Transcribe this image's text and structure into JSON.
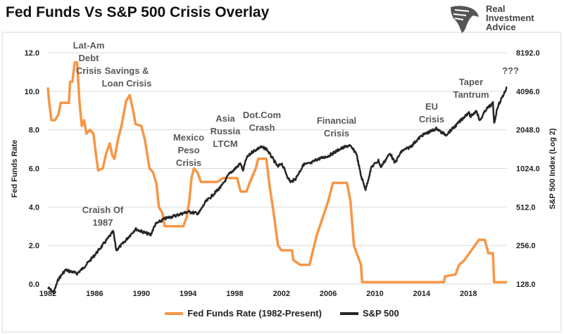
{
  "title": "Fed Funds Vs S&P 500 Crisis Overlay",
  "logo": {
    "lines": [
      "Real",
      "Investment",
      "Advice"
    ]
  },
  "colors": {
    "fed": "#F79646",
    "sp": "#262626",
    "grid": "#D9D9D9",
    "annotation": "#595959"
  },
  "annotations": [
    {
      "lines": [
        "Lat-Am",
        "Debt",
        "Crisis"
      ]
    },
    {
      "lines": [
        "Savings &",
        "Loan Crisis"
      ]
    },
    {
      "lines": [
        "Craish Of",
        "1987"
      ]
    },
    {
      "lines": [
        "Mexico",
        "Peso",
        "Crisis"
      ]
    },
    {
      "lines": [
        "Asia",
        "Russia",
        "LTCM"
      ]
    },
    {
      "lines": [
        "Dot.Com",
        "Crash"
      ]
    },
    {
      "lines": [
        "Financial",
        "Crisis"
      ]
    },
    {
      "lines": [
        "EU",
        "Crisis"
      ]
    },
    {
      "lines": [
        "Taper",
        "Tantrum"
      ]
    },
    {
      "lines": [
        "???"
      ]
    }
  ],
  "legend": {
    "fed": "Fed Funds Rate (1982-Present)",
    "sp": "S&P 500"
  },
  "chart_data": {
    "type": "line",
    "title": "Fed Funds Vs S&P 500 Crisis Overlay",
    "xlabel": "",
    "ylabel": "Fed Funds Rate",
    "y2label": "S&P 500 Index (Log 2)",
    "xlim": [
      1982,
      2021.3
    ],
    "ylim": [
      0,
      12
    ],
    "y2lim": [
      128,
      8192
    ],
    "y2scale": "log2",
    "grid": true,
    "legend_position": "bottom",
    "xticks": [
      "1982",
      "1986",
      "1990",
      "1994",
      "1998",
      "2002",
      "2006",
      "2010",
      "2014",
      "2018"
    ],
    "yticks": [
      "0.0",
      "2.0",
      "4.0",
      "6.0",
      "8.0",
      "10.0",
      "12.0"
    ],
    "y2ticks": [
      "128.0",
      "256.0",
      "512.0",
      "1024.0",
      "2048.0",
      "4096.0",
      "8192.0"
    ],
    "series": [
      {
        "name": "Fed Funds Rate (1982-Present)",
        "axis": "left",
        "points": [
          [
            1982.0,
            10.2
          ],
          [
            1982.1,
            9.5
          ],
          [
            1982.3,
            8.5
          ],
          [
            1982.6,
            8.5
          ],
          [
            1982.9,
            8.8
          ],
          [
            1983.1,
            9.4
          ],
          [
            1983.8,
            9.4
          ],
          [
            1983.9,
            10.5
          ],
          [
            1984.1,
            10.5
          ],
          [
            1984.3,
            11.5
          ],
          [
            1984.5,
            11.5
          ],
          [
            1984.7,
            9.5
          ],
          [
            1984.9,
            8.2
          ],
          [
            1985.1,
            8.5
          ],
          [
            1985.3,
            7.8
          ],
          [
            1985.6,
            8.0
          ],
          [
            1985.9,
            7.8
          ],
          [
            1986.1,
            6.8
          ],
          [
            1986.3,
            5.9
          ],
          [
            1986.7,
            6.0
          ],
          [
            1987.0,
            6.8
          ],
          [
            1987.3,
            7.3
          ],
          [
            1987.5,
            6.7
          ],
          [
            1987.7,
            6.5
          ],
          [
            1988.0,
            7.5
          ],
          [
            1988.3,
            8.2
          ],
          [
            1988.7,
            9.5
          ],
          [
            1989.0,
            9.8
          ],
          [
            1989.3,
            9.0
          ],
          [
            1989.5,
            8.3
          ],
          [
            1990.0,
            8.2
          ],
          [
            1990.3,
            7.5
          ],
          [
            1990.7,
            6.0
          ],
          [
            1991.0,
            5.8
          ],
          [
            1991.3,
            5.2
          ],
          [
            1991.5,
            4.0
          ],
          [
            1991.8,
            3.7
          ],
          [
            1992.0,
            3.0
          ],
          [
            1993.6,
            3.0
          ],
          [
            1993.9,
            3.5
          ],
          [
            1994.1,
            4.3
          ],
          [
            1994.3,
            5.5
          ],
          [
            1994.5,
            6.0
          ],
          [
            1994.8,
            5.8
          ],
          [
            1995.1,
            5.3
          ],
          [
            1996.5,
            5.3
          ],
          [
            1997.0,
            5.5
          ],
          [
            1998.2,
            5.5
          ],
          [
            1998.5,
            4.8
          ],
          [
            1999.0,
            4.8
          ],
          [
            1999.3,
            5.3
          ],
          [
            1999.8,
            6.0
          ],
          [
            2000.0,
            6.5
          ],
          [
            2000.7,
            6.5
          ],
          [
            2001.0,
            5.0
          ],
          [
            2001.3,
            3.8
          ],
          [
            2001.7,
            2.0
          ],
          [
            2002.0,
            1.75
          ],
          [
            2002.9,
            1.75
          ],
          [
            2003.0,
            1.25
          ],
          [
            2003.6,
            1.0
          ],
          [
            2004.4,
            1.0
          ],
          [
            2005.0,
            2.5
          ],
          [
            2006.0,
            4.3
          ],
          [
            2006.4,
            5.25
          ],
          [
            2007.6,
            5.25
          ],
          [
            2007.9,
            4.3
          ],
          [
            2008.2,
            2.0
          ],
          [
            2008.8,
            1.0
          ],
          [
            2008.9,
            0.1
          ],
          [
            2015.9,
            0.1
          ],
          [
            2016.0,
            0.4
          ],
          [
            2016.9,
            0.5
          ],
          [
            2017.2,
            1.0
          ],
          [
            2017.6,
            1.2
          ],
          [
            2018.2,
            1.7
          ],
          [
            2018.9,
            2.3
          ],
          [
            2019.4,
            2.3
          ],
          [
            2019.7,
            1.6
          ],
          [
            2020.1,
            1.6
          ],
          [
            2020.2,
            0.1
          ],
          [
            2021.3,
            0.1
          ]
        ]
      },
      {
        "name": "S&P 500",
        "axis": "right",
        "points": [
          [
            1982.0,
            120
          ],
          [
            1982.5,
            110
          ],
          [
            1982.9,
            140
          ],
          [
            1983.5,
            165
          ],
          [
            1984.5,
            155
          ],
          [
            1985.0,
            170
          ],
          [
            1985.9,
            210
          ],
          [
            1986.5,
            245
          ],
          [
            1987.6,
            330
          ],
          [
            1987.85,
            235
          ],
          [
            1988.5,
            270
          ],
          [
            1989.5,
            345
          ],
          [
            1990.0,
            330
          ],
          [
            1990.8,
            310
          ],
          [
            1991.2,
            375
          ],
          [
            1992.0,
            415
          ],
          [
            1993.0,
            440
          ],
          [
            1994.0,
            470
          ],
          [
            1994.9,
            455
          ],
          [
            1995.5,
            560
          ],
          [
            1996.0,
            620
          ],
          [
            1996.9,
            750
          ],
          [
            1997.5,
            920
          ],
          [
            1998.5,
            1120
          ],
          [
            1998.7,
            980
          ],
          [
            1999.0,
            1230
          ],
          [
            1999.5,
            1380
          ],
          [
            2000.2,
            1500
          ],
          [
            2000.7,
            1460
          ],
          [
            2001.3,
            1200
          ],
          [
            2001.7,
            1050
          ],
          [
            2002.0,
            1130
          ],
          [
            2002.6,
            850
          ],
          [
            2002.8,
            800
          ],
          [
            2003.2,
            850
          ],
          [
            2003.9,
            1100
          ],
          [
            2004.5,
            1120
          ],
          [
            2005.0,
            1200
          ],
          [
            2006.0,
            1280
          ],
          [
            2007.0,
            1450
          ],
          [
            2007.8,
            1550
          ],
          [
            2008.4,
            1350
          ],
          [
            2008.8,
            900
          ],
          [
            2009.2,
            700
          ],
          [
            2009.7,
            1050
          ],
          [
            2010.3,
            1180
          ],
          [
            2010.5,
            1050
          ],
          [
            2011.3,
            1350
          ],
          [
            2011.7,
            1130
          ],
          [
            2012.3,
            1400
          ],
          [
            2013.0,
            1500
          ],
          [
            2014.0,
            1850
          ],
          [
            2015.3,
            2100
          ],
          [
            2015.7,
            1950
          ],
          [
            2016.1,
            1880
          ],
          [
            2016.9,
            2200
          ],
          [
            2018.0,
            2800
          ],
          [
            2018.2,
            2600
          ],
          [
            2018.7,
            2900
          ],
          [
            2018.97,
            2400
          ],
          [
            2019.5,
            2950
          ],
          [
            2020.1,
            3300
          ],
          [
            2020.2,
            2300
          ],
          [
            2020.5,
            3100
          ],
          [
            2021.3,
            4400
          ]
        ]
      }
    ]
  }
}
